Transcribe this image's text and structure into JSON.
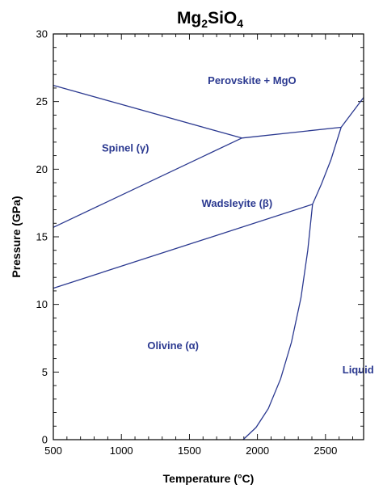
{
  "chart_data": {
    "type": "line",
    "title": {
      "base": "Mg",
      "sub1": "2",
      "mid": "SiO",
      "sub2": "4"
    },
    "xlabel": "Temperature (°C)",
    "ylabel": "Pressure (GPa)",
    "xlim": [
      500,
      2780
    ],
    "ylim": [
      0,
      30
    ],
    "x_major_ticks": [
      500,
      1000,
      1500,
      2000,
      2500
    ],
    "y_major_ticks": [
      0,
      5,
      10,
      15,
      20,
      25,
      30
    ],
    "x_minor_step": 100,
    "y_minor_step": 1,
    "grid": false,
    "regions": [
      {
        "label": "Perovskite + MgO",
        "x": 1960,
        "y": 26.3
      },
      {
        "label": "Spinel (γ)",
        "x": 1030,
        "y": 21.3
      },
      {
        "label": "Wadsleyite (β)",
        "x": 1850,
        "y": 17.2
      },
      {
        "label": "Olivine (α)",
        "x": 1380,
        "y": 6.7
      },
      {
        "label": "Liquid",
        "x": 2740,
        "y": 4.9
      }
    ],
    "boundaries": [
      {
        "x": [
          500,
          1885
        ],
        "y": [
          26.2,
          22.3
        ]
      },
      {
        "x": [
          500,
          1885
        ],
        "y": [
          15.7,
          22.3
        ]
      },
      {
        "x": [
          1885,
          2615
        ],
        "y": [
          22.3,
          23.1
        ]
      },
      {
        "x": [
          500,
          2405
        ],
        "y": [
          11.2,
          17.4
        ]
      },
      {
        "x": [
          2615,
          2780
        ],
        "y": [
          23.1,
          25.3
        ]
      },
      {
        "x": [
          1895,
          1990,
          2080,
          2170,
          2250,
          2320,
          2370,
          2405,
          2470,
          2540,
          2615
        ],
        "y": [
          0,
          0.9,
          2.3,
          4.5,
          7.2,
          10.5,
          14.0,
          17.4,
          18.9,
          20.7,
          23.1
        ]
      }
    ]
  }
}
